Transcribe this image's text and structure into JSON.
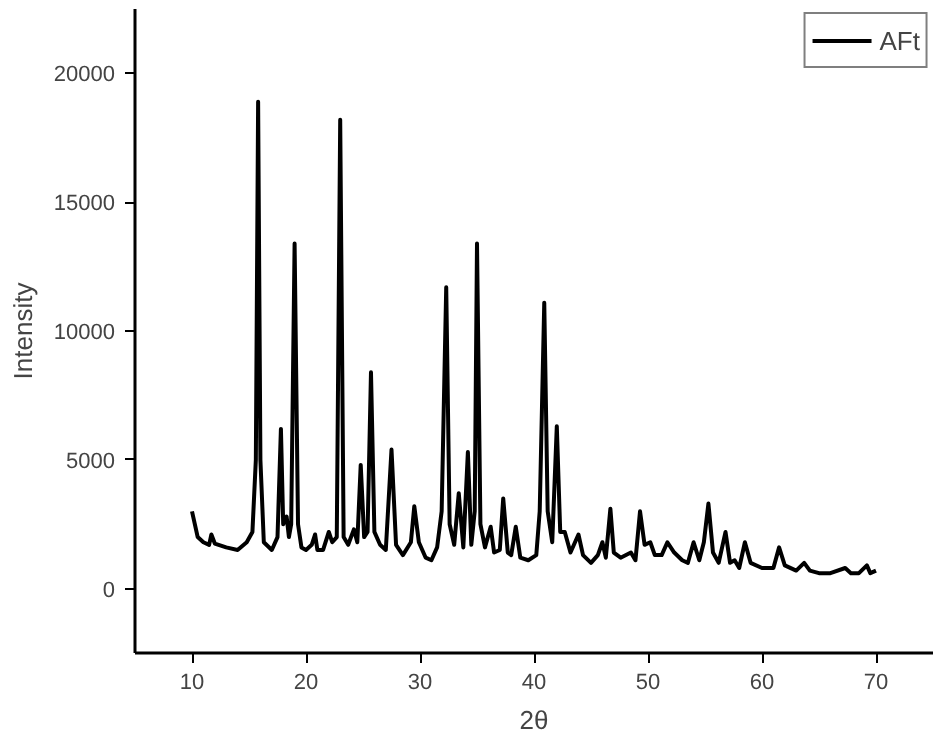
{
  "chart_data": {
    "type": "line",
    "xlabel": "2θ",
    "ylabel": "Intensity",
    "xlim": [
      5,
      75
    ],
    "ylim": [
      -2500,
      22500
    ],
    "xticks": [
      10,
      20,
      30,
      40,
      50,
      60,
      70
    ],
    "yticks": [
      0,
      5000,
      10000,
      15000,
      20000
    ],
    "grid": false,
    "legend": "top right",
    "line_style": "solid",
    "marker": "none",
    "series": [
      {
        "name": "AFt",
        "color": "#000000",
        "x": [
          10,
          10.5,
          11,
          11.5,
          11.7,
          12,
          13,
          14,
          14.8,
          15.3,
          15.6,
          15.8,
          16.0,
          16.3,
          17,
          17.5,
          17.8,
          18.0,
          18.3,
          18.5,
          18.7,
          19.0,
          19.3,
          19.6,
          20.0,
          20.5,
          20.8,
          21,
          21.5,
          22,
          22.3,
          22.7,
          23.0,
          23.3,
          23.7,
          24.2,
          24.5,
          24.8,
          25.1,
          25.4,
          25.7,
          26.0,
          26.5,
          27,
          27.5,
          27.9,
          28.5,
          29.2,
          29.5,
          29.9,
          30.5,
          31,
          31.5,
          31.9,
          32.3,
          32.6,
          33,
          33.4,
          33.8,
          34.2,
          34.5,
          34.8,
          35.0,
          35.3,
          35.7,
          36.2,
          36.5,
          37.0,
          37.3,
          37.7,
          38.0,
          38.4,
          38.8,
          39.5,
          40.2,
          40.5,
          40.9,
          41.2,
          41.6,
          42.0,
          42.3,
          42.7,
          43.2,
          43.9,
          44.3,
          45,
          45.6,
          46,
          46.3,
          46.7,
          47.0,
          47.6,
          48.5,
          48.9,
          49.3,
          49.7,
          50.2,
          50.6,
          51.2,
          51.7,
          52.3,
          53,
          53.5,
          54,
          54.5,
          54.9,
          55.3,
          55.7,
          56.2,
          56.8,
          57.2,
          57.6,
          58,
          58.5,
          59,
          60,
          61,
          61.5,
          62,
          63,
          63.7,
          64.2,
          65,
          66,
          67.3,
          67.8,
          68.5,
          69.2,
          69.5,
          70
        ],
        "values": [
          3000,
          2000,
          1800,
          1700,
          2100,
          1750,
          1600,
          1500,
          1800,
          2200,
          5000,
          18900,
          5000,
          1800,
          1500,
          2000,
          6200,
          2500,
          2800,
          2000,
          2500,
          13400,
          2500,
          1600,
          1500,
          1700,
          2100,
          1500,
          1500,
          2200,
          1800,
          2000,
          18200,
          2000,
          1700,
          2300,
          1800,
          4800,
          2000,
          2200,
          8400,
          2200,
          1700,
          1500,
          5400,
          1700,
          1300,
          1800,
          3200,
          1800,
          1200,
          1100,
          1600,
          3000,
          11700,
          2500,
          1700,
          3700,
          1600,
          5300,
          1700,
          3000,
          13400,
          2500,
          1600,
          2400,
          1400,
          1500,
          3500,
          1400,
          1300,
          2400,
          1200,
          1100,
          1300,
          3000,
          11100,
          3000,
          1800,
          6300,
          2200,
          2200,
          1400,
          2100,
          1300,
          1000,
          1300,
          1800,
          1200,
          3100,
          1400,
          1200,
          1400,
          1100,
          3000,
          1700,
          1800,
          1300,
          1300,
          1800,
          1400,
          1100,
          1000,
          1800,
          1100,
          1800,
          3300,
          1400,
          1000,
          2200,
          1000,
          1100,
          800,
          1800,
          1000,
          800,
          800,
          1600,
          900,
          700,
          1000,
          700,
          600,
          600,
          800,
          600,
          600,
          900,
          600,
          700
        ]
      }
    ]
  }
}
